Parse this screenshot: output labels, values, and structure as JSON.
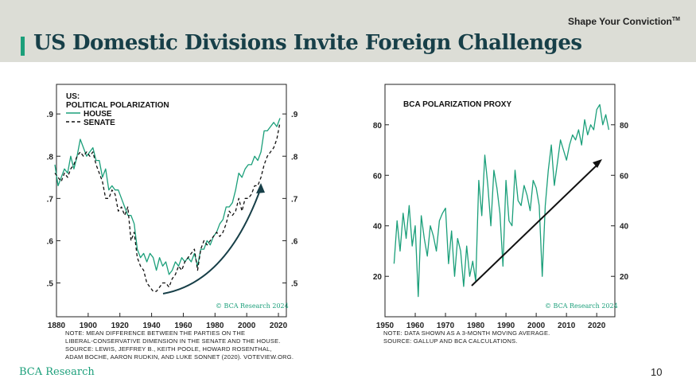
{
  "header": {
    "tagline": "Shape Your Conviction",
    "tagline_mark": "TM",
    "title": "US Domestic Divisions Invite Foreign Challenges"
  },
  "footer": {
    "brand": "BCA Research",
    "page_number": "10"
  },
  "colors": {
    "accent": "#1b9f7a",
    "title": "#173f48",
    "band": "#dcddd6",
    "line": "#1b9f7a",
    "dashed": "#111111"
  },
  "chart_data": [
    {
      "type": "line",
      "title": "US:",
      "subtitle": "POLITICAL POLARIZATION",
      "watermark": "© BCA Research 2024",
      "xlim": [
        1880,
        2025
      ],
      "ylim": [
        0.42,
        0.97
      ],
      "x_ticks": [
        "1880",
        "1900",
        "1920",
        "1940",
        "1960",
        "1980",
        "2000",
        "2020"
      ],
      "y_ticks_left": [
        ".5",
        ".6",
        ".7",
        ".8",
        ".9"
      ],
      "y_ticks_right": [
        ".5",
        ".6",
        ".7",
        ".8",
        ".9"
      ],
      "legend_position": "top-left",
      "series": [
        {
          "name": "HOUSE",
          "style": "solid",
          "x": [
            1879,
            1881,
            1883,
            1885,
            1887,
            1889,
            1891,
            1893,
            1895,
            1897,
            1899,
            1901,
            1903,
            1905,
            1907,
            1909,
            1911,
            1913,
            1915,
            1917,
            1919,
            1921,
            1923,
            1925,
            1927,
            1929,
            1931,
            1933,
            1935,
            1937,
            1939,
            1941,
            1943,
            1945,
            1947,
            1949,
            1951,
            1953,
            1955,
            1957,
            1959,
            1961,
            1963,
            1965,
            1967,
            1969,
            1971,
            1973,
            1975,
            1977,
            1979,
            1981,
            1983,
            1985,
            1987,
            1989,
            1991,
            1993,
            1995,
            1997,
            1999,
            2001,
            2003,
            2005,
            2007,
            2009,
            2011,
            2013,
            2015,
            2017,
            2019,
            2021
          ],
          "values": [
            0.78,
            0.73,
            0.75,
            0.77,
            0.76,
            0.8,
            0.77,
            0.8,
            0.84,
            0.82,
            0.8,
            0.81,
            0.82,
            0.79,
            0.79,
            0.75,
            0.77,
            0.72,
            0.73,
            0.72,
            0.72,
            0.7,
            0.68,
            0.66,
            0.66,
            0.64,
            0.58,
            0.56,
            0.57,
            0.55,
            0.57,
            0.56,
            0.53,
            0.56,
            0.54,
            0.55,
            0.52,
            0.53,
            0.55,
            0.54,
            0.56,
            0.55,
            0.56,
            0.55,
            0.57,
            0.54,
            0.58,
            0.58,
            0.6,
            0.59,
            0.61,
            0.62,
            0.64,
            0.65,
            0.68,
            0.68,
            0.69,
            0.72,
            0.76,
            0.75,
            0.77,
            0.78,
            0.78,
            0.8,
            0.79,
            0.81,
            0.86,
            0.86,
            0.87,
            0.88,
            0.87,
            0.89
          ]
        },
        {
          "name": "SENATE",
          "style": "dashed",
          "x": [
            1879,
            1881,
            1883,
            1885,
            1887,
            1889,
            1891,
            1893,
            1895,
            1897,
            1899,
            1901,
            1903,
            1905,
            1907,
            1909,
            1911,
            1913,
            1915,
            1917,
            1919,
            1921,
            1923,
            1925,
            1927,
            1929,
            1931,
            1933,
            1935,
            1937,
            1939,
            1941,
            1943,
            1945,
            1947,
            1949,
            1951,
            1953,
            1955,
            1957,
            1959,
            1961,
            1963,
            1965,
            1967,
            1969,
            1971,
            1973,
            1975,
            1977,
            1979,
            1981,
            1983,
            1985,
            1987,
            1989,
            1991,
            1993,
            1995,
            1997,
            1999,
            2001,
            2003,
            2005,
            2007,
            2009,
            2011,
            2013,
            2015,
            2017,
            2019,
            2021
          ],
          "values": [
            0.76,
            0.75,
            0.74,
            0.76,
            0.75,
            0.77,
            0.78,
            0.8,
            0.81,
            0.8,
            0.81,
            0.8,
            0.81,
            0.78,
            0.76,
            0.74,
            0.7,
            0.7,
            0.72,
            0.71,
            0.67,
            0.68,
            0.66,
            0.68,
            0.6,
            0.62,
            0.56,
            0.54,
            0.53,
            0.5,
            0.49,
            0.48,
            0.48,
            0.49,
            0.5,
            0.5,
            0.49,
            0.51,
            0.52,
            0.54,
            0.53,
            0.55,
            0.56,
            0.57,
            0.58,
            0.53,
            0.58,
            0.6,
            0.59,
            0.6,
            0.61,
            0.62,
            0.61,
            0.62,
            0.64,
            0.67,
            0.66,
            0.67,
            0.7,
            0.67,
            0.7,
            0.7,
            0.71,
            0.73,
            0.73,
            0.75,
            0.78,
            0.8,
            0.81,
            0.82,
            0.84,
            0.88
          ]
        }
      ]
    },
    {
      "type": "line",
      "title": "BCA POLARIZATION PROXY",
      "watermark": "© BCA Research 2024",
      "xlim": [
        1950,
        2026
      ],
      "ylim": [
        4,
        96
      ],
      "x_ticks": [
        "1950",
        "1960",
        "1970",
        "1980",
        "1990",
        "2000",
        "2010",
        "2020"
      ],
      "y_ticks_left": [
        "20",
        "40",
        "60",
        "80"
      ],
      "y_ticks_right": [
        "20",
        "40",
        "60",
        "80"
      ],
      "series": [
        {
          "style": "solid",
          "x": [
            1953,
            1954,
            1955,
            1956,
            1957,
            1958,
            1959,
            1960,
            1961,
            1962,
            1963,
            1964,
            1965,
            1966,
            1967,
            1968,
            1969,
            1970,
            1971,
            1972,
            1973,
            1974,
            1975,
            1976,
            1977,
            1978,
            1979,
            1980,
            1981,
            1982,
            1983,
            1984,
            1985,
            1986,
            1987,
            1988,
            1989,
            1990,
            1991,
            1992,
            1993,
            1994,
            1995,
            1996,
            1997,
            1998,
            1999,
            2000,
            2001,
            2002,
            2003,
            2004,
            2005,
            2006,
            2007,
            2008,
            2009,
            2010,
            2011,
            2012,
            2013,
            2014,
            2015,
            2016,
            2017,
            2018,
            2019,
            2020,
            2021,
            2022,
            2023,
            2024
          ],
          "values": [
            25,
            42,
            30,
            45,
            35,
            48,
            32,
            40,
            12,
            44,
            35,
            28,
            40,
            36,
            30,
            42,
            45,
            47,
            25,
            38,
            20,
            35,
            30,
            16,
            32,
            20,
            26,
            18,
            58,
            44,
            68,
            56,
            40,
            62,
            55,
            45,
            24,
            58,
            42,
            40,
            62,
            50,
            48,
            56,
            52,
            46,
            58,
            55,
            48,
            20,
            48,
            62,
            72,
            56,
            65,
            74,
            70,
            66,
            72,
            76,
            74,
            78,
            72,
            82,
            76,
            80,
            78,
            86,
            88,
            80,
            84,
            78
          ]
        }
      ]
    }
  ],
  "notes": {
    "left": [
      "NOTE: MEAN DIFFERENCE BETWEEN THE PARTIES ON THE",
      "LIBERAL-CONSERVATIVE DIMENSION IN THE SENATE AND THE HOUSE.",
      "SOURCE: LEWIS, JEFFREY B., KEITH POOLE, HOWARD ROSENTHAL,",
      "ADAM BOCHE, AARON RUDKIN, AND LUKE SONNET (2020). VOTEVIEW.ORG."
    ],
    "right": [
      "NOTE: DATA SHOWN AS A 3-MONTH MOVING AVERAGE.",
      "SOURCE: GALLUP AND BCA CALCULATIONS."
    ]
  }
}
